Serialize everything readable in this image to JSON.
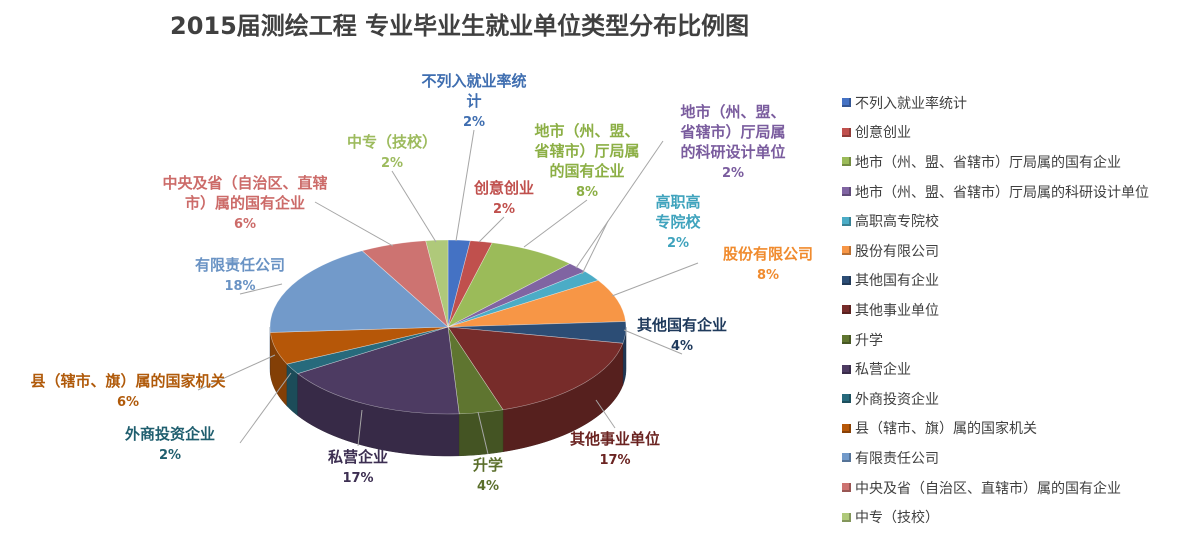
{
  "chart_data": {
    "type": "pie",
    "title": "2015届测绘工程 专业毕业生就业单位类型分布比例图",
    "legend_position": "right",
    "slices": [
      {
        "label": "不列入就业率统计",
        "chart_label": [
          "不列入就业率统",
          "计"
        ],
        "value": 2,
        "display": "2%",
        "color": "#4472C4",
        "label_color": "#3F6EB0"
      },
      {
        "label": "创意创业",
        "chart_label": [
          "创意创业"
        ],
        "value": 2,
        "display": "2%",
        "color": "#C0504D",
        "label_color": "#C0504D"
      },
      {
        "label": "地市（州、盟、省辖市）厅局属的国有企业",
        "chart_label": [
          "地市（州、盟、",
          "省辖市）厅局属",
          "的国有企业"
        ],
        "value": 8,
        "display": "8%",
        "color": "#9BBB59",
        "label_color": "#8CAF45"
      },
      {
        "label": "地市（州、盟、省辖市）厅局属的科研设计单位",
        "chart_label": [
          "地市（州、盟、",
          "省辖市）厅局属",
          "的科研设计单位"
        ],
        "value": 2,
        "display": "2%",
        "color": "#8064A2",
        "label_color": "#7A5C9E"
      },
      {
        "label": "高职高专院校",
        "chart_label": [
          "高职高",
          "专院校"
        ],
        "value": 2,
        "display": "2%",
        "color": "#4BACC6",
        "label_color": "#3FA3BD"
      },
      {
        "label": "股份有限公司",
        "chart_label": [
          "股份有限公司"
        ],
        "value": 8,
        "display": "8%",
        "color": "#F79646",
        "label_color": "#F08B2E"
      },
      {
        "label": "其他国有企业",
        "chart_label": [
          "其他国有企业"
        ],
        "value": 4,
        "display": "4%",
        "color": "#2C4D75",
        "label_color": "#1F3A5C"
      },
      {
        "label": "其他事业单位",
        "chart_label": [
          "其他事业单位"
        ],
        "value": 17,
        "display": "17%",
        "color": "#772C2A",
        "label_color": "#6B2422"
      },
      {
        "label": "升学",
        "chart_label": [
          "升学"
        ],
        "value": 4,
        "display": "4%",
        "color": "#5F7530",
        "label_color": "#5A6E2A"
      },
      {
        "label": "私营企业",
        "chart_label": [
          "私营企业"
        ],
        "value": 17,
        "display": "17%",
        "color": "#4D3B62",
        "label_color": "#3D2F52"
      },
      {
        "label": "外商投资企业",
        "chart_label": [
          "外商投资企业"
        ],
        "value": 2,
        "display": "2%",
        "color": "#276A7C",
        "label_color": "#1F5E6E"
      },
      {
        "label": "县（辖市、旗）属的国家机关",
        "chart_label": [
          "县（辖市、旗）属的国家机关"
        ],
        "value": 6,
        "display": "6%",
        "color": "#B65708",
        "label_color": "#B05A0A"
      },
      {
        "label": "有限责任公司",
        "chart_label": [
          "有限责任公司"
        ],
        "value": 18,
        "display": "18%",
        "color": "#729ACA",
        "label_color": "#6A93C4"
      },
      {
        "label": "中央及省（自治区、直辖市）属的国有企业",
        "chart_label": [
          "中央及省（自治区、直辖",
          "市）属的国有企业"
        ],
        "value": 6,
        "display": "6%",
        "color": "#CD7371",
        "label_color": "#CC6B69"
      },
      {
        "label": "中专（技校）",
        "chart_label": [
          "中专（技校）"
        ],
        "value": 2,
        "display": "2%",
        "color": "#AFC97A",
        "label_color": "#9DBB5E"
      }
    ]
  }
}
